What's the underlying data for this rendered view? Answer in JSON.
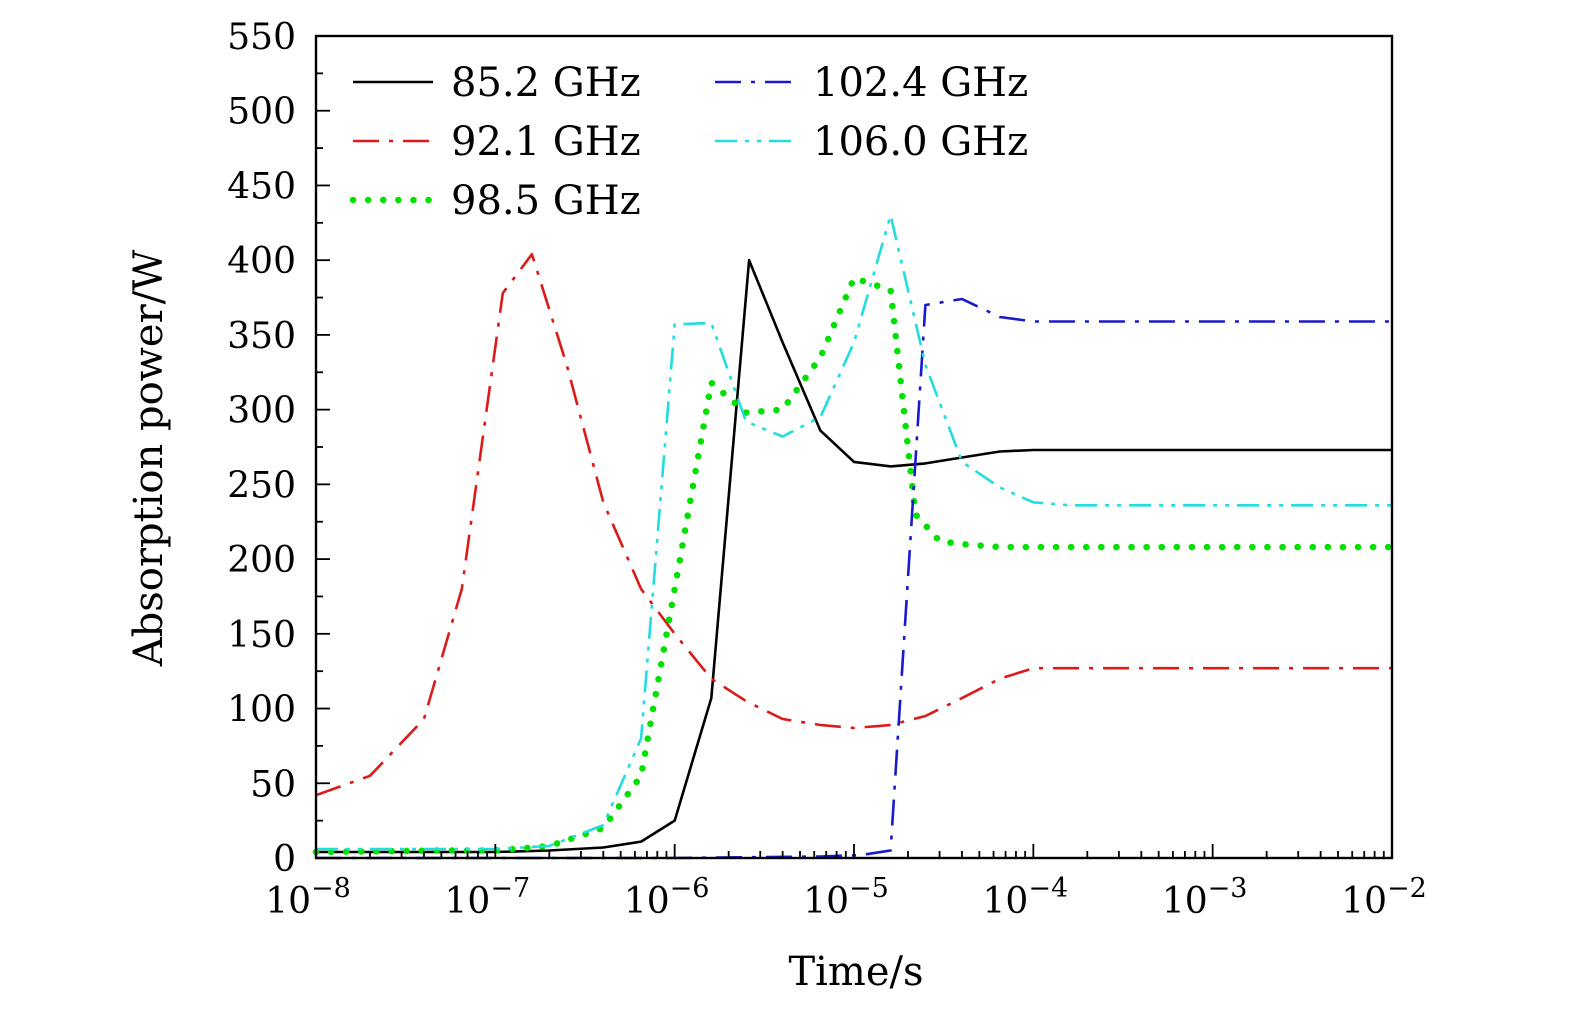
{
  "chart_data": {
    "type": "line",
    "xlabel": "Time/s",
    "ylabel": "Absorption power/W",
    "x_scale": "log",
    "xlim": [
      1e-08,
      0.01
    ],
    "ylim": [
      0,
      550
    ],
    "grid": false,
    "legend_position": "top-left",
    "x_ticks": [
      {
        "value": 1e-08,
        "base": "10",
        "exp": "−8"
      },
      {
        "value": 1e-07,
        "base": "10",
        "exp": "−7"
      },
      {
        "value": 1e-06,
        "base": "10",
        "exp": "−6"
      },
      {
        "value": 1e-05,
        "base": "10",
        "exp": "−5"
      },
      {
        "value": 0.0001,
        "base": "10",
        "exp": "−4"
      },
      {
        "value": 0.001,
        "base": "10",
        "exp": "−3"
      },
      {
        "value": 0.01,
        "base": "10",
        "exp": "−2"
      }
    ],
    "y_ticks": [
      "0",
      "50",
      "100",
      "150",
      "200",
      "250",
      "300",
      "350",
      "400",
      "450",
      "500",
      "550"
    ],
    "series": [
      {
        "name": "85.2 GHz",
        "color": "#000000",
        "dash": "solid",
        "x": [
          1e-08,
          3e-08,
          1e-07,
          2e-07,
          4e-07,
          6.5e-07,
          1e-06,
          1.6e-06,
          2.6e-06,
          4e-06,
          6.5e-06,
          1e-05,
          1.6e-05,
          2.5e-05,
          4e-05,
          6.5e-05,
          0.0001,
          0.00016,
          0.001,
          0.01
        ],
        "y": [
          4,
          4,
          4,
          5,
          7,
          11,
          25,
          107,
          400,
          345,
          286,
          265,
          262,
          264,
          268,
          272,
          273,
          273,
          273,
          273
        ]
      },
      {
        "name": "92.1 GHz",
        "color": "#dd1a1a",
        "dash": "dashdot",
        "x": [
          1e-08,
          2e-08,
          4e-08,
          6.5e-08,
          1.1e-07,
          1.6e-07,
          2.5e-07,
          4e-07,
          6.5e-07,
          1e-06,
          1.6e-06,
          2.5e-06,
          4e-06,
          6.5e-06,
          1e-05,
          1.6e-05,
          2.5e-05,
          4e-05,
          6.5e-05,
          0.0001,
          0.00016,
          0.001,
          0.01
        ],
        "y": [
          42,
          55,
          93,
          180,
          378,
          404,
          330,
          238,
          180,
          150,
          120,
          105,
          93,
          89,
          87,
          89,
          95,
          107,
          120,
          127,
          127,
          127,
          127
        ]
      },
      {
        "name": "98.5 GHz",
        "color": "#00e000",
        "dash": "dotted",
        "x": [
          1e-08,
          5e-08,
          1e-07,
          2e-07,
          4e-07,
          6.5e-07,
          1e-06,
          1.6e-06,
          2.5e-06,
          4e-06,
          6.5e-06,
          1e-05,
          1.6e-05,
          2.2e-05,
          3e-05,
          4e-05,
          6.5e-05,
          0.0001,
          0.001,
          0.01
        ],
        "y": [
          4,
          5,
          5,
          8,
          20,
          55,
          180,
          318,
          298,
          300,
          335,
          388,
          380,
          230,
          212,
          210,
          208,
          208,
          208,
          208
        ]
      },
      {
        "name": "102.4 GHz",
        "color": "#1a1acc",
        "dash": "dashdot",
        "x": [
          1e-08,
          1e-07,
          1e-06,
          6.5e-06,
          1.1e-05,
          1.6e-05,
          2.5e-05,
          4e-05,
          6.5e-05,
          0.0001,
          0.00016,
          0.001,
          0.01
        ],
        "y": [
          0,
          0,
          0,
          1,
          2,
          5,
          370,
          374,
          362,
          359,
          359,
          359,
          359
        ]
      },
      {
        "name": "106.0 GHz",
        "color": "#22dddd",
        "dash": "dashdotdot",
        "x": [
          1e-08,
          5e-08,
          1e-07,
          2e-07,
          4e-07,
          6.5e-07,
          1e-06,
          1.6e-06,
          2.5e-06,
          4e-06,
          6.5e-06,
          1e-05,
          1.6e-05,
          2.5e-05,
          4e-05,
          6.5e-05,
          0.0001,
          0.00016,
          0.001,
          0.01
        ],
        "y": [
          6,
          6,
          6,
          8,
          22,
          80,
          357,
          358,
          292,
          282,
          295,
          345,
          430,
          330,
          265,
          248,
          238,
          236,
          236,
          236
        ]
      }
    ]
  }
}
